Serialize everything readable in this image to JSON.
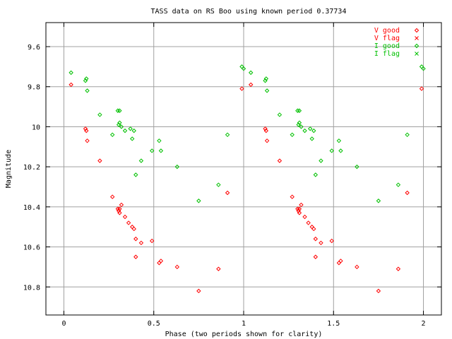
{
  "chart_data": {
    "type": "scatter",
    "title": "TASS data on RS Boo  using known period 0.37734",
    "xlabel": "Phase (two periods shown for clarity)",
    "ylabel": "Magnitude",
    "xlim": [
      -0.1,
      2.1
    ],
    "ylim": [
      9.48,
      10.94
    ],
    "y_inverted": true,
    "grid": true,
    "legend_position": "top-right",
    "x_ticks": [
      {
        "value": 0,
        "label": "0"
      },
      {
        "value": 0.5,
        "label": "0.5"
      },
      {
        "value": 1,
        "label": "1"
      },
      {
        "value": 1.5,
        "label": "1.5"
      },
      {
        "value": 2,
        "label": "2"
      }
    ],
    "y_ticks": [
      {
        "value": 9.6,
        "label": "9.6"
      },
      {
        "value": 9.8,
        "label": "9.8"
      },
      {
        "value": 10.0,
        "label": "10"
      },
      {
        "value": 10.2,
        "label": "10.2"
      },
      {
        "value": 10.4,
        "label": "10.4"
      },
      {
        "value": 10.6,
        "label": "10.6"
      },
      {
        "value": 10.8,
        "label": "10.8"
      }
    ],
    "series": [
      {
        "name": "V good",
        "marker": "diamond",
        "color": "#ff0000",
        "points": [
          [
            0.04,
            9.79
          ],
          [
            0.12,
            10.01
          ],
          [
            0.125,
            10.02
          ],
          [
            0.13,
            10.07
          ],
          [
            0.2,
            10.17
          ],
          [
            0.27,
            10.35
          ],
          [
            0.3,
            10.41
          ],
          [
            0.305,
            10.42
          ],
          [
            0.31,
            10.43
          ],
          [
            0.31,
            10.41
          ],
          [
            0.32,
            10.39
          ],
          [
            0.34,
            10.45
          ],
          [
            0.36,
            10.48
          ],
          [
            0.38,
            10.5
          ],
          [
            0.39,
            10.51
          ],
          [
            0.4,
            10.56
          ],
          [
            0.4,
            10.65
          ],
          [
            0.43,
            10.58
          ],
          [
            0.49,
            10.57
          ],
          [
            0.53,
            10.68
          ],
          [
            0.54,
            10.67
          ],
          [
            0.63,
            10.7
          ],
          [
            0.75,
            10.82
          ],
          [
            0.86,
            10.71
          ],
          [
            0.91,
            10.33
          ],
          [
            0.99,
            9.81
          ],
          [
            1.04,
            9.79
          ],
          [
            1.12,
            10.01
          ],
          [
            1.125,
            10.02
          ],
          [
            1.13,
            10.07
          ],
          [
            1.2,
            10.17
          ],
          [
            1.27,
            10.35
          ],
          [
            1.3,
            10.41
          ],
          [
            1.305,
            10.42
          ],
          [
            1.31,
            10.43
          ],
          [
            1.31,
            10.41
          ],
          [
            1.32,
            10.39
          ],
          [
            1.34,
            10.45
          ],
          [
            1.36,
            10.48
          ],
          [
            1.38,
            10.5
          ],
          [
            1.39,
            10.51
          ],
          [
            1.4,
            10.56
          ],
          [
            1.4,
            10.65
          ],
          [
            1.43,
            10.58
          ],
          [
            1.49,
            10.57
          ],
          [
            1.53,
            10.68
          ],
          [
            1.54,
            10.67
          ],
          [
            1.63,
            10.7
          ],
          [
            1.75,
            10.82
          ],
          [
            1.86,
            10.71
          ],
          [
            1.91,
            10.33
          ],
          [
            1.99,
            9.81
          ]
        ]
      },
      {
        "name": "V flag",
        "marker": "cross",
        "color": "#ff0000",
        "points": []
      },
      {
        "name": "I good",
        "marker": "diamond",
        "color": "#00c000",
        "points": [
          [
            0.04,
            9.73
          ],
          [
            0.12,
            9.77
          ],
          [
            0.125,
            9.76
          ],
          [
            0.13,
            9.82
          ],
          [
            0.2,
            9.94
          ],
          [
            0.27,
            10.04
          ],
          [
            0.3,
            9.92
          ],
          [
            0.305,
            9.99
          ],
          [
            0.31,
            9.98
          ],
          [
            0.31,
            9.92
          ],
          [
            0.32,
            10.0
          ],
          [
            0.34,
            10.02
          ],
          [
            0.37,
            10.01
          ],
          [
            0.38,
            10.06
          ],
          [
            0.39,
            10.02
          ],
          [
            0.4,
            10.24
          ],
          [
            0.43,
            10.17
          ],
          [
            0.49,
            10.12
          ],
          [
            0.53,
            10.07
          ],
          [
            0.54,
            10.12
          ],
          [
            0.63,
            10.2
          ],
          [
            0.75,
            10.37
          ],
          [
            0.86,
            10.29
          ],
          [
            0.91,
            10.04
          ],
          [
            0.99,
            9.7
          ],
          [
            1.0,
            9.71
          ],
          [
            1.04,
            9.73
          ],
          [
            1.12,
            9.77
          ],
          [
            1.125,
            9.76
          ],
          [
            1.13,
            9.82
          ],
          [
            1.2,
            9.94
          ],
          [
            1.27,
            10.04
          ],
          [
            1.3,
            9.92
          ],
          [
            1.305,
            9.99
          ],
          [
            1.31,
            9.98
          ],
          [
            1.31,
            9.92
          ],
          [
            1.32,
            10.0
          ],
          [
            1.34,
            10.02
          ],
          [
            1.37,
            10.01
          ],
          [
            1.38,
            10.06
          ],
          [
            1.39,
            10.02
          ],
          [
            1.4,
            10.24
          ],
          [
            1.43,
            10.17
          ],
          [
            1.49,
            10.12
          ],
          [
            1.53,
            10.07
          ],
          [
            1.54,
            10.12
          ],
          [
            1.63,
            10.2
          ],
          [
            1.75,
            10.37
          ],
          [
            1.86,
            10.29
          ],
          [
            1.91,
            10.04
          ],
          [
            1.99,
            9.7
          ],
          [
            2.0,
            9.71
          ]
        ]
      },
      {
        "name": "I flag",
        "marker": "cross",
        "color": "#00c000",
        "points": []
      }
    ]
  }
}
